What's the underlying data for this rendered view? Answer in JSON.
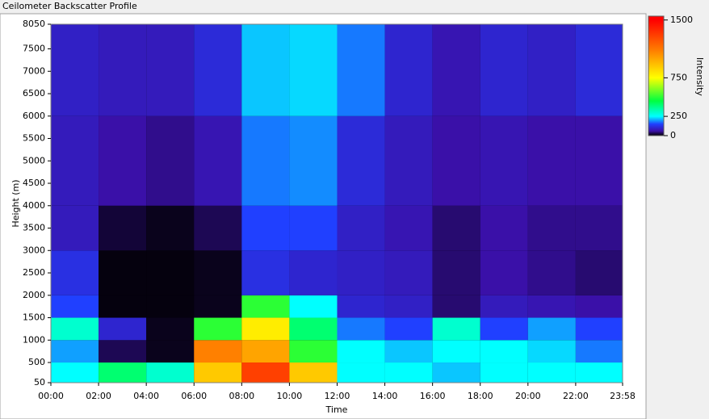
{
  "chart_data": {
    "type": "heatmap",
    "title": "Ceilometer Backscatter Profile",
    "x_label": "Time",
    "y_label": "Height (m)",
    "colorbar_label": "Intensity",
    "xlim": [
      0,
      23.967
    ],
    "xticks": [
      {
        "value": 0,
        "label": "00:00"
      },
      {
        "value": 2,
        "label": "02:00"
      },
      {
        "value": 4,
        "label": "04:00"
      },
      {
        "value": 6,
        "label": "06:00"
      },
      {
        "value": 8,
        "label": "08:00"
      },
      {
        "value": 10,
        "label": "10:00"
      },
      {
        "value": 12,
        "label": "12:00"
      },
      {
        "value": 14,
        "label": "14:00"
      },
      {
        "value": 16,
        "label": "16:00"
      },
      {
        "value": 18,
        "label": "18:00"
      },
      {
        "value": 20,
        "label": "20:00"
      },
      {
        "value": 22,
        "label": "22:00"
      },
      {
        "value": 23.967,
        "label": "23:58"
      }
    ],
    "ylim": [
      50,
      8050
    ],
    "yticks": [
      50,
      500,
      1000,
      1500,
      2000,
      2500,
      3000,
      3500,
      4000,
      4500,
      5000,
      5500,
      6000,
      6500,
      7000,
      7500,
      8050
    ],
    "clim": [
      0,
      1550
    ],
    "cticks": [
      0,
      250,
      750,
      1500
    ],
    "colorscale": [
      [
        0,
        "#000000"
      ],
      [
        60,
        "#3a10a8"
      ],
      [
        150,
        "#2040ff"
      ],
      [
        250,
        "#00ffff"
      ],
      [
        450,
        "#00ff40"
      ],
      [
        750,
        "#ffff00"
      ],
      [
        1100,
        "#ff8000"
      ],
      [
        1500,
        "#ff0000"
      ]
    ],
    "x_bins": [
      0,
      2,
      4,
      6,
      8,
      10,
      12,
      14,
      16,
      18,
      20,
      22,
      23.967
    ],
    "y_bins": [
      50,
      500,
      1000,
      1500,
      2000,
      3000,
      4000,
      6000,
      8050
    ],
    "z": [
      [
        250,
        400,
        300,
        900,
        1300,
        900,
        250,
        250,
        220,
        250,
        250,
        250
      ],
      [
        200,
        30,
        10,
        1100,
        1000,
        500,
        250,
        220,
        250,
        250,
        230,
        180
      ],
      [
        300,
        100,
        10,
        500,
        800,
        400,
        180,
        150,
        300,
        150,
        200,
        150
      ],
      [
        150,
        5,
        5,
        10,
        500,
        250,
        100,
        90,
        40,
        80,
        70,
        60
      ],
      [
        120,
        5,
        5,
        10,
        120,
        100,
        90,
        80,
        40,
        60,
        50,
        40
      ],
      [
        80,
        20,
        10,
        30,
        150,
        150,
        90,
        70,
        40,
        60,
        50,
        50
      ],
      [
        80,
        60,
        50,
        70,
        180,
        190,
        110,
        80,
        60,
        70,
        60,
        60
      ],
      [
        90,
        80,
        80,
        110,
        220,
        230,
        180,
        100,
        70,
        100,
        90,
        110
      ]
    ]
  }
}
